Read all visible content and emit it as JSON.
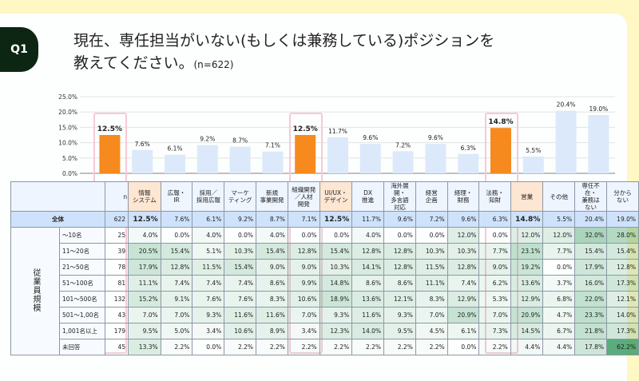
{
  "badge": "Q1",
  "title": {
    "line1": "現在、専任担当がいない(もしくは兼務している)ポジションを",
    "line2": "教えてください。",
    "n": "(n=622)"
  },
  "colors": {
    "highlight_bar": "#f68a1e",
    "bar": "#dbe9fb",
    "highlight_box": "#f6cad6",
    "heat": "#3d9e66",
    "background": "#fff7c4",
    "badge": "#0d2614"
  },
  "chart_data": {
    "type": "bar",
    "categories": [
      "情報システム",
      "広報・IR",
      "採用／採用広報",
      "マーケティング",
      "新規事業開発",
      "組織開発／人材開発",
      "UI/UX・デザイン",
      "DX推進",
      "海外展開・多言語対応",
      "経営企画",
      "経理・財務",
      "法務・知財",
      "営業",
      "その他",
      "専任不在・兼務はない",
      "分からない"
    ],
    "values": [
      12.5,
      7.6,
      6.1,
      9.2,
      8.7,
      7.1,
      12.5,
      11.7,
      9.6,
      7.2,
      9.6,
      6.3,
      14.8,
      5.5,
      20.4,
      19.0
    ],
    "data_labels": [
      "12.5%",
      "7.6%",
      "6.1%",
      "9.2%",
      "8.7%",
      "7.1%",
      "12.5%",
      "11.7%",
      "9.6%",
      "7.2%",
      "9.6%",
      "6.3%",
      "14.8%",
      "5.5%",
      "20.4%",
      "19.0%"
    ],
    "highlighted": [
      0,
      6,
      12
    ],
    "ylim": [
      0,
      25
    ],
    "yticks": [
      "0.0%",
      "5.0%",
      "10.0%",
      "15.0%",
      "20.0%",
      "25.0%"
    ],
    "grid": true
  },
  "table": {
    "n_header": "n",
    "headers": [
      [
        "情報",
        "システム"
      ],
      [
        "広報・",
        "IR"
      ],
      [
        "採用／",
        "採用広報"
      ],
      [
        "マーケ",
        "ティング"
      ],
      [
        "新規",
        "事業開発"
      ],
      [
        "組織開発",
        "／人材",
        "開発"
      ],
      [
        "UI/UX・",
        "デザイン"
      ],
      [
        "DX",
        "推進"
      ],
      [
        "海外展開・",
        "多言語",
        "対応"
      ],
      [
        "経営",
        "企画"
      ],
      [
        "経理・",
        "財務"
      ],
      [
        "法務・",
        "知財"
      ],
      [
        "営業"
      ],
      [
        "その他"
      ],
      [
        "専任不在・",
        "兼務は",
        "ない"
      ],
      [
        "分から",
        "ない"
      ]
    ],
    "total": {
      "label": "全体",
      "n": "622",
      "values": [
        "12.5%",
        "7.6%",
        "6.1%",
        "9.2%",
        "8.7%",
        "7.1%",
        "12.5%",
        "11.7%",
        "9.6%",
        "7.2%",
        "9.6%",
        "6.3%",
        "14.8%",
        "5.5%",
        "20.4%",
        "19.0%"
      ]
    },
    "group_label": "従業員規模",
    "rows": [
      {
        "label": "〜10名",
        "n": "25",
        "values": [
          4.0,
          0.0,
          4.0,
          0.0,
          4.0,
          0.0,
          0.0,
          4.0,
          0.0,
          0.0,
          12.0,
          0.0,
          12.0,
          12.0,
          32.0,
          28.0
        ]
      },
      {
        "label": "11〜20名",
        "n": "39",
        "values": [
          20.5,
          15.4,
          5.1,
          10.3,
          15.4,
          12.8,
          15.4,
          12.8,
          12.8,
          10.3,
          10.3,
          7.7,
          23.1,
          7.7,
          15.4,
          15.4
        ]
      },
      {
        "label": "21〜50名",
        "n": "78",
        "values": [
          17.9,
          12.8,
          11.5,
          15.4,
          9.0,
          9.0,
          10.3,
          14.1,
          12.8,
          11.5,
          12.8,
          9.0,
          19.2,
          0.0,
          17.9,
          12.8
        ]
      },
      {
        "label": "51〜100名",
        "n": "81",
        "values": [
          11.1,
          7.4,
          7.4,
          7.4,
          8.6,
          9.9,
          14.8,
          8.6,
          8.6,
          11.1,
          7.4,
          6.2,
          13.6,
          3.7,
          16.0,
          17.3
        ]
      },
      {
        "label": "101〜500名",
        "n": "132",
        "values": [
          15.2,
          9.1,
          7.6,
          7.6,
          8.3,
          10.6,
          18.9,
          13.6,
          12.1,
          8.3,
          12.9,
          5.3,
          12.9,
          6.8,
          22.0,
          12.1
        ]
      },
      {
        "label": "501〜1,00名",
        "n": "43",
        "values": [
          7.0,
          7.0,
          9.3,
          11.6,
          11.6,
          7.0,
          9.3,
          11.6,
          9.3,
          7.0,
          20.9,
          7.0,
          20.9,
          4.7,
          23.3,
          14.0
        ]
      },
      {
        "label": "1,001名以上",
        "n": "179",
        "values": [
          9.5,
          5.0,
          3.4,
          10.6,
          8.9,
          3.4,
          12.3,
          14.0,
          9.5,
          4.5,
          6.1,
          7.3,
          14.5,
          6.7,
          21.8,
          17.3
        ]
      },
      {
        "label": "未回答",
        "n": "45",
        "values": [
          13.3,
          2.2,
          0.0,
          2.2,
          2.2,
          2.2,
          2.2,
          2.2,
          2.2,
          2.2,
          0.0,
          2.2,
          4.4,
          4.4,
          17.8,
          62.2
        ]
      }
    ]
  }
}
